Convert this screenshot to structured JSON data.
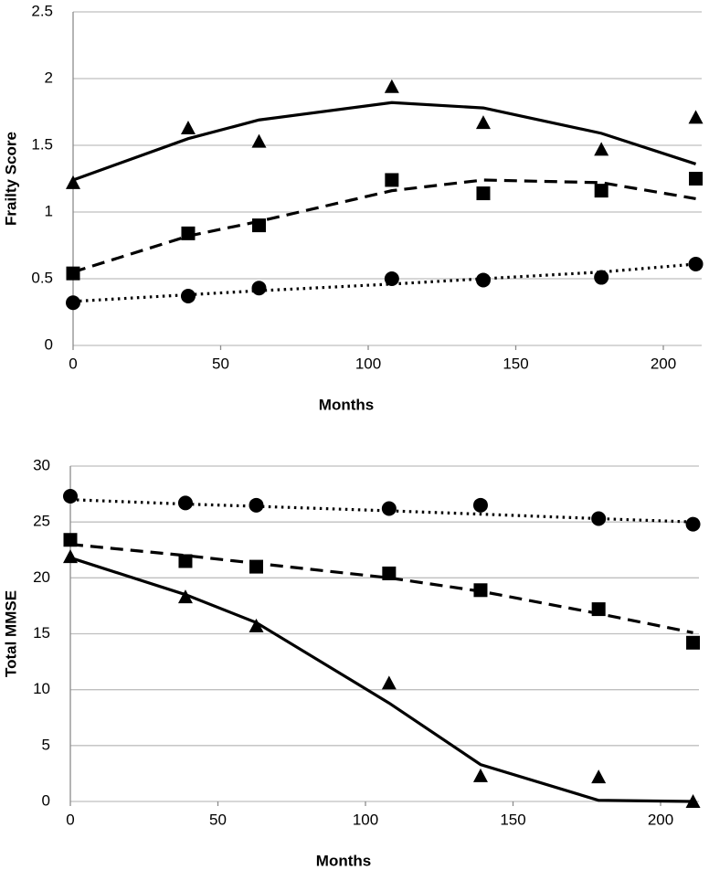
{
  "chart_data": [
    {
      "type": "scatter",
      "xlabel": "Months",
      "ylabel": "Frailty Score",
      "x": [
        0,
        39,
        63,
        108,
        139,
        179,
        211
      ],
      "xlim": [
        0,
        213
      ],
      "xticks": [
        0,
        50,
        100,
        150,
        200
      ],
      "ylim": [
        0,
        2.5
      ],
      "yticks": [
        0,
        0.5,
        1,
        1.5,
        2,
        2.5
      ],
      "grid": true,
      "series": [
        {
          "marker": "triangle",
          "dash": "solid",
          "color": "#000000",
          "values": [
            1.22,
            1.63,
            1.53,
            1.94,
            1.67,
            1.47,
            1.71
          ],
          "fit": [
            1.24,
            1.55,
            1.69,
            1.82,
            1.78,
            1.59,
            1.36
          ]
        },
        {
          "marker": "square",
          "dash": "dashed",
          "color": "#000000",
          "values": [
            0.54,
            0.84,
            0.9,
            1.24,
            1.14,
            1.16,
            1.25
          ],
          "fit": [
            0.55,
            0.82,
            0.93,
            1.16,
            1.24,
            1.22,
            1.1
          ]
        },
        {
          "marker": "circle",
          "dash": "dotted",
          "color": "#000000",
          "values": [
            0.32,
            0.37,
            0.43,
            0.5,
            0.49,
            0.51,
            0.61
          ],
          "fit": [
            0.33,
            0.38,
            0.41,
            0.46,
            0.5,
            0.55,
            0.61
          ]
        }
      ]
    },
    {
      "type": "scatter",
      "xlabel": "Months",
      "ylabel": "Total MMSE",
      "x": [
        0,
        39,
        63,
        108,
        139,
        179,
        211
      ],
      "xlim": [
        0,
        213
      ],
      "xticks": [
        0,
        50,
        100,
        150,
        200
      ],
      "ylim": [
        0,
        30
      ],
      "yticks": [
        0,
        5,
        10,
        15,
        20,
        25,
        30
      ],
      "grid": true,
      "series": [
        {
          "marker": "circle",
          "dash": "dotted",
          "color": "#000000",
          "values": [
            27.3,
            26.7,
            26.5,
            26.2,
            26.5,
            25.3,
            24.8
          ],
          "fit": [
            27.0,
            26.6,
            26.4,
            26.0,
            25.7,
            25.3,
            25.0
          ]
        },
        {
          "marker": "square",
          "dash": "dashed",
          "color": "#000000",
          "values": [
            23.4,
            21.5,
            21.0,
            20.4,
            18.9,
            17.2,
            14.2
          ],
          "fit": [
            23.0,
            22.0,
            21.3,
            20.0,
            18.8,
            16.8,
            15.1
          ]
        },
        {
          "marker": "triangle",
          "dash": "solid",
          "color": "#000000",
          "values": [
            21.9,
            18.3,
            15.7,
            10.6,
            2.3,
            2.2,
            0
          ],
          "fit": [
            21.8,
            18.5,
            16.0,
            8.8,
            3.3,
            0.1,
            0
          ]
        }
      ]
    }
  ]
}
